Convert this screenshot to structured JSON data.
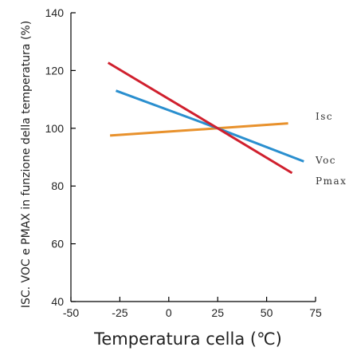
{
  "chart_data": {
    "type": "line",
    "xlabel": "Temperatura cella (℃)",
    "ylabel": "ISC. VOC e PMAX in funzione della temperatura (%)",
    "xlim": [
      -50,
      75
    ],
    "ylim": [
      40,
      140
    ],
    "xticks": [
      -50,
      -25,
      0,
      25,
      50,
      75
    ],
    "yticks": [
      40,
      60,
      80,
      100,
      120,
      140
    ],
    "grid": false,
    "legend_placement": "right, beside line ends",
    "series": [
      {
        "name": "Isc",
        "color": "#e8912c",
        "points": [
          [
            -30,
            97.5
          ],
          [
            25,
            100
          ],
          [
            61,
            101.7
          ]
        ]
      },
      {
        "name": "Voc",
        "color": "#2a8fcf",
        "points": [
          [
            -27,
            113
          ],
          [
            25,
            100
          ],
          [
            69,
            88.5
          ]
        ]
      },
      {
        "name": "Pmax",
        "color": "#d0202e",
        "points": [
          [
            -31,
            122.7
          ],
          [
            25,
            100
          ],
          [
            63,
            84.5
          ]
        ]
      }
    ]
  }
}
